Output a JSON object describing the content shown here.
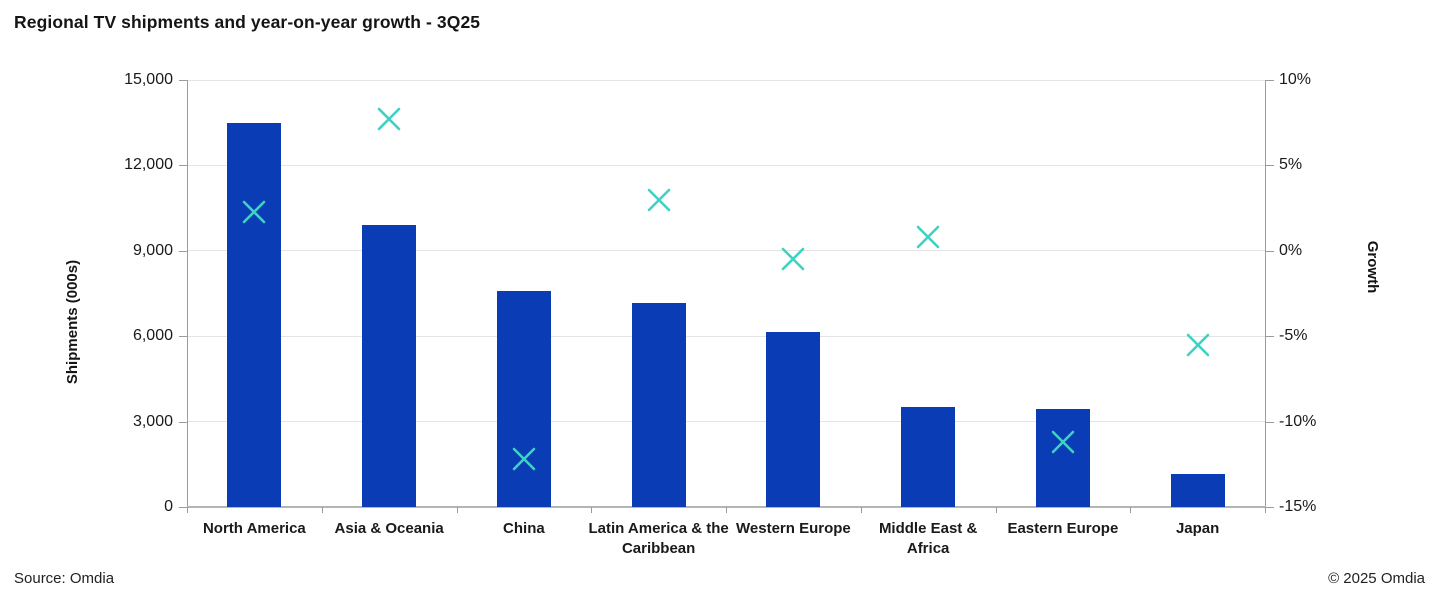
{
  "page": {
    "source": "Source: Omdia",
    "copyright": "© 2025 Omdia"
  },
  "chart_data": {
    "type": "bar",
    "subtype": "combo-bar-with-scatter-x-markers",
    "title": "Regional TV shipments and year-on-year growth - 3Q25",
    "categories": [
      "North America",
      "Asia & Oceania",
      "China",
      "Latin America & the Caribbean",
      "Western Europe",
      "Middle East & Africa",
      "Eastern Europe",
      "Japan"
    ],
    "category_display_labels": [
      "North America",
      "Asia & Oceania",
      "China",
      "Latin America & the\nCaribbean",
      "Western Europe",
      "Middle East &\nAfrica",
      "Eastern Europe",
      "Japan"
    ],
    "series": [
      {
        "name": "Shipments (000s)",
        "type": "bar",
        "axis": "left",
        "color": "#0a3db5",
        "values": [
          13500,
          9900,
          7600,
          7150,
          6150,
          3500,
          3450,
          1150
        ]
      },
      {
        "name": "Growth",
        "type": "scatter",
        "marker": "x",
        "axis": "right",
        "color": "#3ed2c3",
        "values": [
          2.3,
          7.7,
          -12.2,
          3.0,
          -0.5,
          0.8,
          -11.2,
          -5.5
        ]
      }
    ],
    "left_axis": {
      "label": "Shipments (000s)",
      "range": [
        0,
        15000
      ],
      "ticks": [
        0,
        3000,
        6000,
        9000,
        12000,
        15000
      ],
      "tick_labels": [
        "0",
        "3,000",
        "6,000",
        "9,000",
        "12,000",
        "15,000"
      ]
    },
    "right_axis": {
      "label": "Growth",
      "range": [
        -15,
        10
      ],
      "ticks": [
        -15,
        -10,
        -5,
        0,
        5,
        10
      ],
      "tick_labels": [
        "-15%",
        "-10%",
        "-5%",
        "0%",
        "5%",
        "10%"
      ]
    },
    "grid": true,
    "legend": "none",
    "background": "#ffffff"
  }
}
